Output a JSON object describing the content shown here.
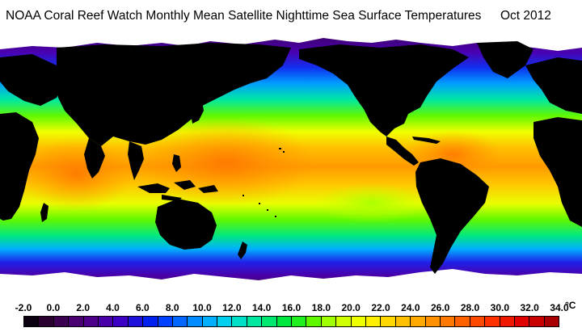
{
  "header": {
    "title": "NOAA Coral Reef Watch Monthly Mean Satellite Nighttime Sea Surface Temperatures",
    "date": "Oct 2012"
  },
  "map": {
    "type": "global sea surface temperature map",
    "projection": "equirectangular",
    "land_color": "#000000",
    "ice_color": "#ffffff"
  },
  "colorbar": {
    "tick_labels": [
      "-2.0",
      "0.0",
      "2.0",
      "4.0",
      "6.0",
      "8.0",
      "10.0",
      "12.0",
      "14.0",
      "16.0",
      "18.0",
      "20.0",
      "22.0",
      "24.0",
      "26.0",
      "28.0",
      "30.0",
      "32.0",
      "34.0"
    ],
    "unit": "°C",
    "min": -2.0,
    "max": 34.0,
    "colors": [
      "#0a0010",
      "#2a0030",
      "#3c0050",
      "#4a0070",
      "#4e008a",
      "#4a00a8",
      "#3c00c4",
      "#2010dc",
      "#0020f0",
      "#0040ff",
      "#0066ff",
      "#008cff",
      "#00b0ff",
      "#00d0f0",
      "#00e0c8",
      "#00e8a0",
      "#00e870",
      "#00e840",
      "#20f020",
      "#60f800",
      "#a0ff00",
      "#d0ff00",
      "#f0ff00",
      "#fff000",
      "#ffd800",
      "#ffc000",
      "#ffa800",
      "#ff9000",
      "#ff7800",
      "#ff6000",
      "#ff4800",
      "#ff3000",
      "#f01800",
      "#e00000",
      "#c80000",
      "#a80000"
    ]
  }
}
